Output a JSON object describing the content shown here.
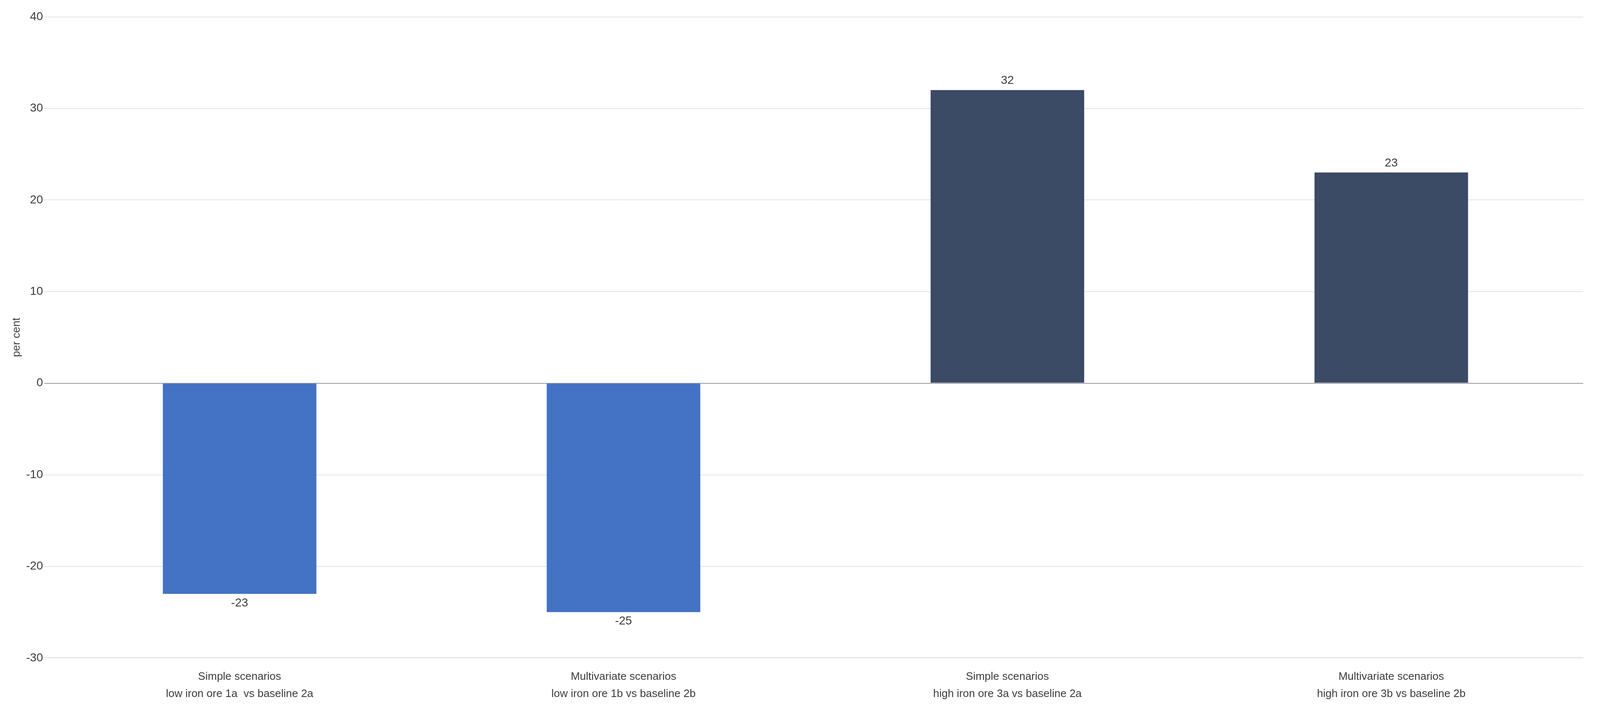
{
  "chart_data": {
    "type": "bar",
    "categories": [
      "Simple scenarios\nlow iron ore 1a  vs baseline 2a",
      "Multivariate scenarios\nlow iron ore 1b vs baseline 2b",
      "Simple scenarios\nhigh iron ore 3a vs baseline 2a",
      "Multivariate scenarios\nhigh iron ore 3b vs baseline 2b"
    ],
    "values": [
      -23,
      -25,
      32,
      23
    ],
    "colors": [
      "#4472C4",
      "#4472C4",
      "#3B4A65",
      "#3B4A65"
    ],
    "ylabel": "per cent",
    "ylim": [
      -30,
      40
    ],
    "yticks": [
      -30,
      -20,
      -10,
      0,
      10,
      20,
      30,
      40
    ],
    "grid": true,
    "data_labels": true
  }
}
